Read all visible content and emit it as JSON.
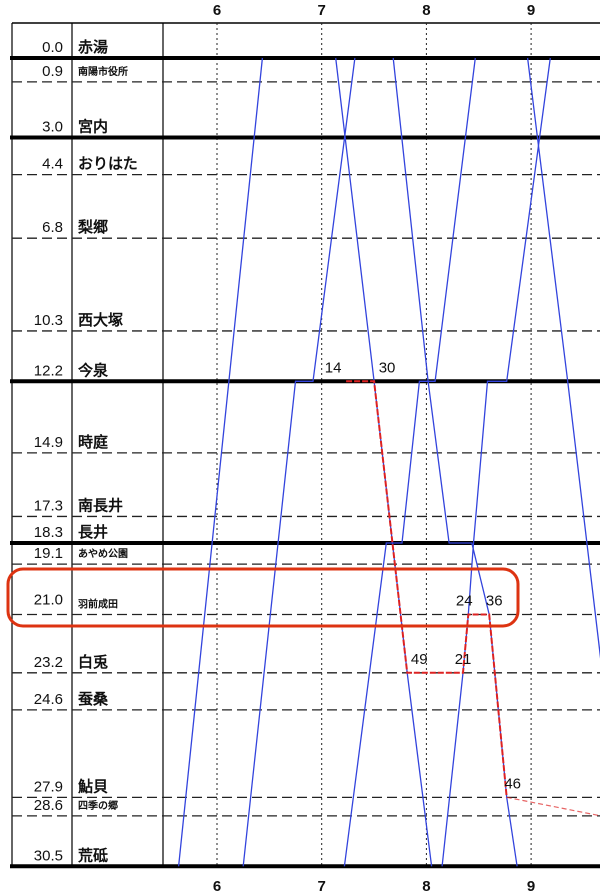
{
  "chart_data": {
    "type": "line",
    "title": "",
    "xlabel": "",
    "ylabel": "",
    "x_unit": "time of day (h:mm)",
    "xlim": [
      "5:29",
      "9:40"
    ],
    "x_ticks": [
      "6",
      "7",
      "8",
      "9"
    ],
    "y_unit": "km",
    "ylim": [
      0,
      30.5
    ],
    "y_inverted": true,
    "grid": {
      "vertical": "dotted at each hour",
      "horizontal": "each station"
    },
    "stations": [
      {
        "km": "0.0",
        "name": "赤湯",
        "thick": true,
        "small": false
      },
      {
        "km": "0.9",
        "name": "南陽市役所",
        "thick": false,
        "small": true
      },
      {
        "km": "3.0",
        "name": "宮内",
        "thick": true,
        "small": false
      },
      {
        "km": "4.4",
        "name": "おりはた",
        "thick": false,
        "small": false
      },
      {
        "km": "6.8",
        "name": "梨郷",
        "thick": false,
        "small": false
      },
      {
        "km": "10.3",
        "name": "西大塚",
        "thick": false,
        "small": false
      },
      {
        "km": "12.2",
        "name": "今泉",
        "thick": true,
        "small": false
      },
      {
        "km": "14.9",
        "name": "時庭",
        "thick": false,
        "small": false
      },
      {
        "km": "17.3",
        "name": "南長井",
        "thick": false,
        "small": false
      },
      {
        "km": "18.3",
        "name": "長井",
        "thick": true,
        "small": false
      },
      {
        "km": "19.1",
        "name": "あやめ公園",
        "thick": false,
        "small": true
      },
      {
        "km": "21.0",
        "name": "羽前成田",
        "thick": false,
        "small": true
      },
      {
        "km": "23.2",
        "name": "白兎",
        "thick": false,
        "small": false
      },
      {
        "km": "24.6",
        "name": "蚕桑",
        "thick": false,
        "small": false
      },
      {
        "km": "27.9",
        "name": "鮎貝",
        "thick": false,
        "small": false
      },
      {
        "km": "28.6",
        "name": "四季の郷",
        "thick": false,
        "small": true
      },
      {
        "km": "30.5",
        "name": "荒砥",
        "thick": true,
        "small": false
      }
    ],
    "series_color": "#3344dd",
    "trains": [
      {
        "points": [
          [
            "5:38",
            30.5
          ],
          [
            "6:26",
            0
          ]
        ]
      },
      {
        "points": [
          [
            "6:15",
            30.5
          ],
          [
            "6:45",
            12.2
          ],
          [
            "6:55",
            12.2
          ],
          [
            "7:19",
            0
          ]
        ]
      },
      {
        "points": [
          [
            "7:08",
            0
          ],
          [
            "7:30",
            12.2
          ],
          [
            "7:49",
            23.2
          ],
          [
            "8:03",
            30.5
          ]
        ]
      },
      {
        "points": [
          [
            "7:13",
            30.5
          ],
          [
            "7:37",
            18.3
          ],
          [
            "7:46",
            18.3
          ],
          [
            "7:56",
            12.2
          ],
          [
            "8:05",
            12.2
          ],
          [
            "8:28",
            0
          ]
        ]
      },
      {
        "points": [
          [
            "7:41",
            0
          ],
          [
            "8:01",
            12.2
          ],
          [
            "8:13",
            18.3
          ],
          [
            "8:26",
            18.3
          ],
          [
            "8:36",
            21.0
          ],
          [
            "8:46",
            27.9
          ],
          [
            "8:52",
            30.5
          ]
        ]
      },
      {
        "points": [
          [
            "8:09",
            30.5
          ],
          [
            "8:21",
            23.2
          ],
          [
            "8:24",
            21.0
          ],
          [
            "8:27",
            18.3
          ],
          [
            "8:35",
            12.2
          ],
          [
            "8:46",
            12.2
          ],
          [
            "9:11",
            0
          ]
        ]
      },
      {
        "points": [
          [
            "8:58",
            0
          ],
          [
            "9:21",
            12.2
          ],
          [
            "9:54",
            30.5
          ]
        ]
      }
    ],
    "route": {
      "color": "#dd2222",
      "points": [
        [
          "7:14",
          12.2
        ],
        [
          "7:30",
          12.2
        ],
        [
          "7:49",
          23.2
        ],
        [
          "8:21",
          23.2
        ],
        [
          "8:24",
          21.0
        ],
        [
          "8:36",
          21.0
        ],
        [
          "8:46",
          27.9
        ]
      ],
      "walk_points": [
        [
          "8:46",
          27.9
        ],
        [
          "9:40",
          28.6
        ]
      ]
    },
    "annotations": [
      {
        "text": "14",
        "time": "7:14",
        "km": 12.2
      },
      {
        "text": "30",
        "time": "7:30",
        "km": 12.2
      },
      {
        "text": "49",
        "time": "7:49",
        "km": 23.2
      },
      {
        "text": "21",
        "time": "8:21",
        "km": 23.2
      },
      {
        "text": "24",
        "time": "8:24",
        "km": 21.0
      },
      {
        "text": "36",
        "time": "8:36",
        "km": 21.0
      },
      {
        "text": "46",
        "time": "8:46",
        "km": 27.9
      }
    ],
    "highlight": {
      "station": "羽前成田",
      "color": "#dd3311"
    }
  }
}
